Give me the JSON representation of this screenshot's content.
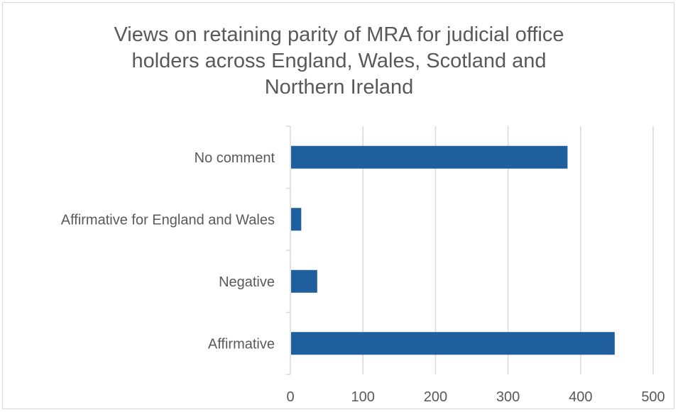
{
  "chart_data": {
    "type": "bar",
    "orientation": "horizontal",
    "title": "Views on retaining parity of MRA for judicial office holders across England, Wales, Scotland and Northern Ireland",
    "title_lines": [
      "Views on retaining parity of MRA for judicial office",
      "holders across England, Wales, Scotland and",
      "Northern Ireland"
    ],
    "categories": [
      "No comment",
      "Affirmative for England and Wales",
      "Negative",
      "Affirmative"
    ],
    "values": [
      382,
      15,
      37,
      447
    ],
    "xlim": [
      0,
      500
    ],
    "x_ticks": [
      0,
      100,
      200,
      300,
      400,
      500
    ],
    "x_tick_labels": [
      "0",
      "100",
      "200",
      "300",
      "400",
      "500"
    ],
    "xlabel": "",
    "ylabel": "",
    "grid": true,
    "legend": "none",
    "bar_color": "#1f5f9e",
    "grid_color": "#d9d9d9"
  }
}
